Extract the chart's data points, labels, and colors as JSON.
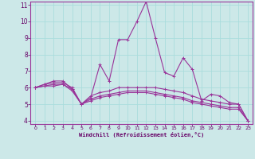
{
  "bg_color": "#cce8e8",
  "grid_color": "#aadddd",
  "line_color": "#993399",
  "marker_color": "#993399",
  "xlabel": "Windchill (Refroidissement éolien,°C)",
  "xlabel_color": "#660066",
  "tick_color": "#660066",
  "xmin": 0,
  "xmax": 23,
  "ymin": 4,
  "ymax": 11,
  "series": [
    [
      6.0,
      6.2,
      6.4,
      6.4,
      5.9,
      5.0,
      5.4,
      7.4,
      6.4,
      8.9,
      8.9,
      10.0,
      11.2,
      9.0,
      6.9,
      6.7,
      7.8,
      7.1,
      5.2,
      5.6,
      5.5,
      5.1,
      5.0,
      4.0
    ],
    [
      6.0,
      6.2,
      6.3,
      6.3,
      6.0,
      5.0,
      5.5,
      5.7,
      5.8,
      6.0,
      6.0,
      6.0,
      6.0,
      6.0,
      5.9,
      5.8,
      5.7,
      5.5,
      5.3,
      5.2,
      5.1,
      5.0,
      5.0,
      4.0
    ],
    [
      6.0,
      6.1,
      6.2,
      6.2,
      5.9,
      5.0,
      5.3,
      5.5,
      5.6,
      5.7,
      5.8,
      5.8,
      5.8,
      5.7,
      5.6,
      5.5,
      5.4,
      5.2,
      5.1,
      5.0,
      4.9,
      4.8,
      4.8,
      4.0
    ],
    [
      6.0,
      6.1,
      6.1,
      6.2,
      5.8,
      5.0,
      5.2,
      5.4,
      5.5,
      5.6,
      5.7,
      5.7,
      5.7,
      5.6,
      5.5,
      5.4,
      5.3,
      5.1,
      5.0,
      4.9,
      4.8,
      4.7,
      4.7,
      4.0
    ]
  ]
}
